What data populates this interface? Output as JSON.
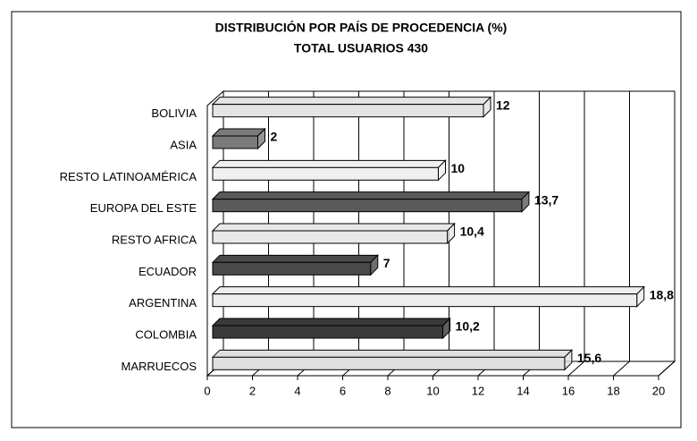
{
  "chart_data": {
    "type": "bar3d",
    "title": "DISTRIBUCIÓN POR PAÍS DE PROCEDENCIA (%)",
    "subtitle": "TOTAL USUARIOS 430",
    "categories": [
      "BOLIVIA",
      "ASIA",
      "RESTO LATINOAMÉRICA",
      "EUROPA DEL ESTE",
      "RESTO AFRICA",
      "ECUADOR",
      "ARGENTINA",
      "COLOMBIA",
      "MARRUECOS"
    ],
    "values": [
      12,
      2,
      10,
      13.7,
      10.4,
      7,
      18.8,
      10.2,
      15.6
    ],
    "value_labels": [
      "12",
      "2",
      "10",
      "13,7",
      "10,4",
      "7",
      "18,8",
      "10,2",
      "15,6"
    ],
    "colors": [
      "#e4e4e4",
      "#7a7a7a",
      "#f0f0f0",
      "#5a5a5a",
      "#e8e8e8",
      "#4a4a4a",
      "#eeeeee",
      "#3a3a3a",
      "#e0e0e0"
    ],
    "xlim": [
      0,
      20
    ],
    "xticks": [
      0,
      2,
      4,
      6,
      8,
      10,
      12,
      14,
      16,
      18,
      20
    ],
    "grid": true
  }
}
